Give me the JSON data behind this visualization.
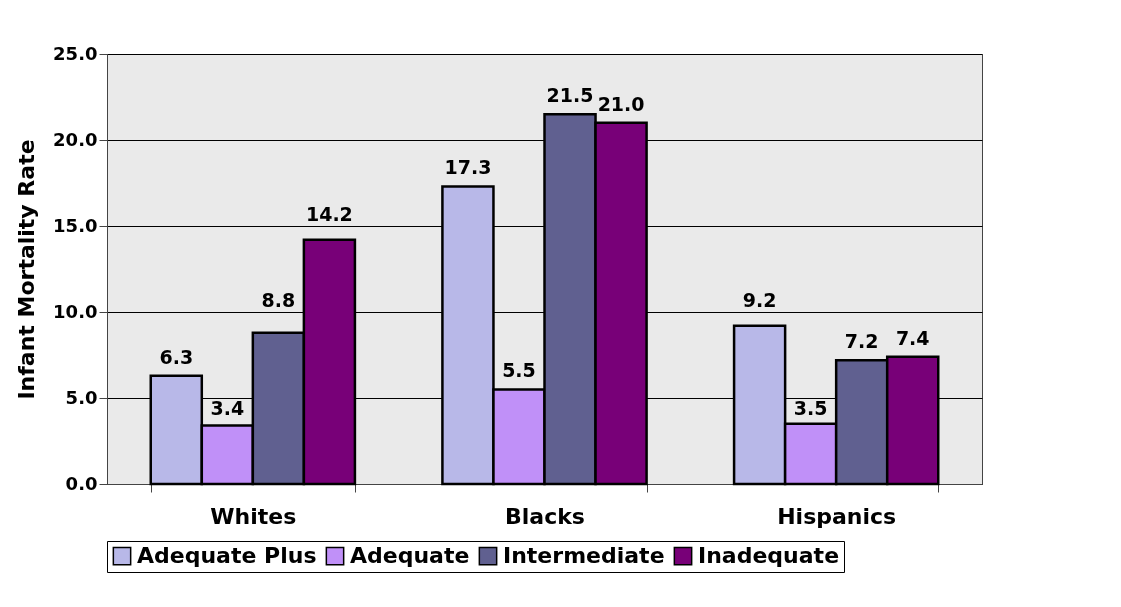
{
  "chart_data": {
    "type": "bar",
    "ylabel": "Infant Mortality Rate",
    "categories": [
      "Whites",
      "Blacks",
      "Hispanics"
    ],
    "series": [
      {
        "name": "Adequate Plus",
        "color": "#b8b8e8",
        "values": [
          6.3,
          17.3,
          9.2
        ],
        "value_labels": [
          "6.3",
          "17.3",
          "9.2"
        ]
      },
      {
        "name": "Adequate",
        "color": "#c090f8",
        "values": [
          3.4,
          5.5,
          3.5
        ],
        "value_labels": [
          "3.4",
          "5.5",
          "3.5"
        ]
      },
      {
        "name": "Intermediate",
        "color": "#606090",
        "values": [
          8.8,
          21.5,
          7.2
        ],
        "value_labels": [
          "8.8",
          "21.5",
          "7.2"
        ]
      },
      {
        "name": "Inadequate",
        "color": "#780078",
        "values": [
          14.2,
          21.0,
          7.4
        ],
        "value_labels": [
          "14.2",
          "21.0",
          "7.4"
        ]
      }
    ],
    "ylim": [
      0,
      25
    ],
    "yticks": [
      {
        "value": 0,
        "label": "0.0"
      },
      {
        "value": 5,
        "label": "5.0"
      },
      {
        "value": 10,
        "label": "10.0"
      },
      {
        "value": 15,
        "label": "15.0"
      },
      {
        "value": 20,
        "label": "20.0"
      },
      {
        "value": 25,
        "label": "25.0"
      }
    ],
    "grid": "y",
    "legend": "bottom"
  }
}
